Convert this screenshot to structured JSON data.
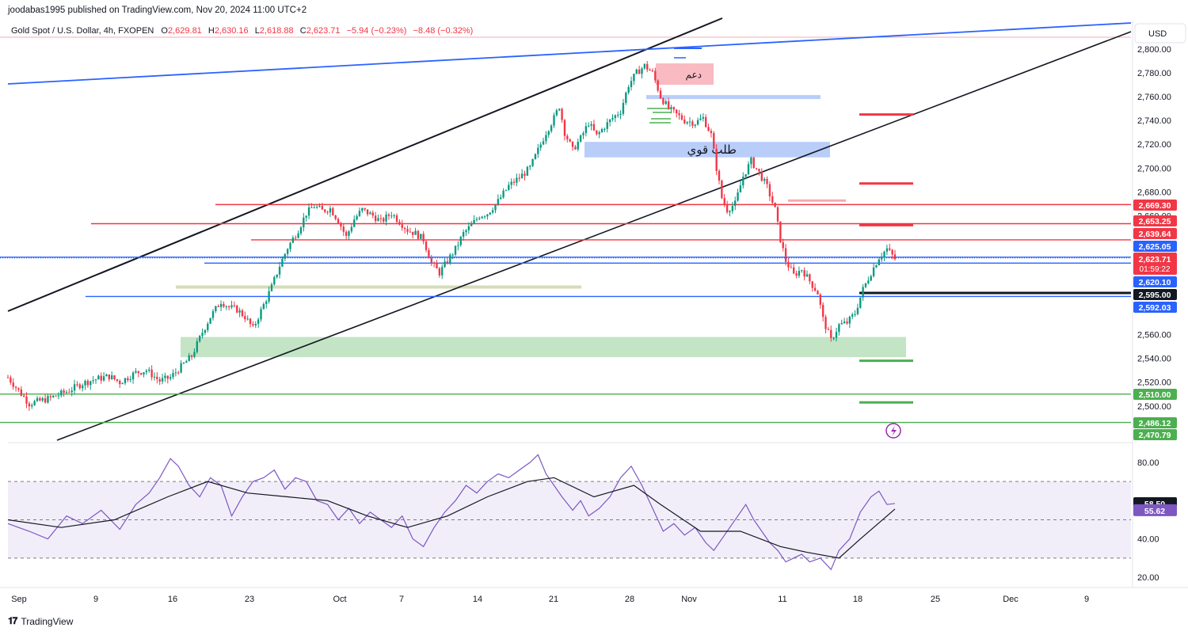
{
  "header": {
    "publisher": "joodabas1995 published on TradingView.com, Nov 20, 2024 11:00 UTC+2"
  },
  "legend": {
    "symbol": "Gold Spot / U.S. Dollar, 4h, FXOPEN",
    "open_label": "O",
    "open": "2,629.81",
    "high_label": "H",
    "high": "2,630.16",
    "low_label": "L",
    "low": "2,618.88",
    "close_label": "C",
    "close": "2,623.71",
    "change": "−5.94 (−0.23%)",
    "change2": "−8.48 (−0.32%)"
  },
  "footer": {
    "brand": "TradingView"
  },
  "currency": "USD",
  "colors": {
    "up": "#089981",
    "down": "#f23645",
    "blue_line": "#2962ff",
    "red_line": "#f23645",
    "green_line": "#4caf50",
    "rsi": "#7e57c2",
    "rsi_band": "#7e57c2"
  },
  "chart_data": {
    "type": "candlestick",
    "instrument": "Gold Spot / U.S. Dollar",
    "timeframe": "4h",
    "ylim": [
      2460,
      2820
    ],
    "x_ticks": [
      "Sep",
      "9",
      "16",
      "23",
      "Oct",
      "7",
      "14",
      "21",
      "28",
      "Nov",
      "11",
      "18",
      "25",
      "Dec",
      "9"
    ],
    "y_ticks": [
      "2,800.00",
      "2,780.00",
      "2,760.00",
      "2,740.00",
      "2,720.00",
      "2,700.00",
      "2,680.00",
      "2,660.00",
      "2,560.00",
      "2,540.00",
      "2,520.00",
      "2,500.00"
    ],
    "y_tick_values": [
      2800,
      2780,
      2760,
      2740,
      2720,
      2700,
      2680,
      2660,
      2560,
      2540,
      2520,
      2500
    ],
    "price_path": [
      [
        0,
        2524
      ],
      [
        8,
        2502
      ],
      [
        15,
        2506
      ],
      [
        22,
        2512
      ],
      [
        28,
        2519
      ],
      [
        32,
        2522
      ],
      [
        38,
        2525
      ],
      [
        42,
        2520
      ],
      [
        48,
        2528
      ],
      [
        52,
        2530
      ],
      [
        57,
        2521
      ],
      [
        61,
        2524
      ],
      [
        65,
        2533
      ],
      [
        69,
        2542
      ],
      [
        73,
        2562
      ],
      [
        76,
        2575
      ],
      [
        80,
        2588
      ],
      [
        83,
        2583
      ],
      [
        86,
        2581
      ],
      [
        89,
        2575
      ],
      [
        92,
        2565
      ],
      [
        96,
        2585
      ],
      [
        99,
        2600
      ],
      [
        102,
        2618
      ],
      [
        105,
        2633
      ],
      [
        109,
        2648
      ],
      [
        112,
        2662
      ],
      [
        115,
        2668
      ],
      [
        118,
        2664
      ],
      [
        121,
        2666
      ],
      [
        124,
        2656
      ],
      [
        127,
        2642
      ],
      [
        130,
        2657
      ],
      [
        133,
        2665
      ],
      [
        137,
        2660
      ],
      [
        140,
        2655
      ],
      [
        144,
        2662
      ],
      [
        147,
        2655
      ],
      [
        150,
        2648
      ],
      [
        153,
        2645
      ],
      [
        156,
        2640
      ],
      [
        159,
        2620
      ],
      [
        162,
        2612
      ],
      [
        165,
        2622
      ],
      [
        168,
        2632
      ],
      [
        171,
        2645
      ],
      [
        174,
        2652
      ],
      [
        177,
        2660
      ],
      [
        180,
        2662
      ],
      [
        184,
        2672
      ],
      [
        188,
        2685
      ],
      [
        192,
        2692
      ],
      [
        196,
        2700
      ],
      [
        199,
        2715
      ],
      [
        202,
        2730
      ],
      [
        205,
        2742
      ],
      [
        207,
        2752
      ],
      [
        209,
        2730
      ],
      [
        212,
        2715
      ],
      [
        215,
        2725
      ],
      [
        218,
        2738
      ],
      [
        221,
        2727
      ],
      [
        224,
        2735
      ],
      [
        227,
        2742
      ],
      [
        230,
        2748
      ],
      [
        233,
        2770
      ],
      [
        236,
        2780
      ],
      [
        239,
        2786
      ],
      [
        242,
        2780
      ],
      [
        245,
        2760
      ],
      [
        248,
        2750
      ],
      [
        251,
        2745
      ],
      [
        254,
        2740
      ],
      [
        258,
        2738
      ],
      [
        261,
        2742
      ],
      [
        264,
        2728
      ],
      [
        266,
        2700
      ],
      [
        268,
        2675
      ],
      [
        270,
        2665
      ],
      [
        273,
        2670
      ],
      [
        276,
        2693
      ],
      [
        279,
        2706
      ],
      [
        282,
        2696
      ],
      [
        285,
        2684
      ],
      [
        288,
        2665
      ],
      [
        290,
        2640
      ],
      [
        292,
        2622
      ],
      [
        295,
        2610
      ],
      [
        298,
        2615
      ],
      [
        301,
        2605
      ],
      [
        304,
        2595
      ],
      [
        306,
        2573
      ],
      [
        309,
        2555
      ],
      [
        312,
        2568
      ],
      [
        315,
        2570
      ],
      [
        318,
        2578
      ],
      [
        321,
        2598
      ],
      [
        324,
        2612
      ],
      [
        327,
        2625
      ],
      [
        330,
        2632
      ],
      [
        333,
        2623.71
      ]
    ],
    "hlines": [
      {
        "price": 2669.3,
        "label": "2,669.30",
        "color": "#f23645"
      },
      {
        "price": 2653.25,
        "label": "2,653.25",
        "color": "#f23645"
      },
      {
        "price": 2639.64,
        "label": "2,639.64",
        "color": "#f23645"
      },
      {
        "price": 2625.05,
        "label": "2,625.05",
        "color": "#2962ff"
      },
      {
        "price": 2620.1,
        "label": "2,620.10",
        "color": "#2962ff"
      },
      {
        "price": 2595.0,
        "label": "2,595.00",
        "color": "#131722"
      },
      {
        "price": 2592.03,
        "label": "2,592.03",
        "color": "#2962ff"
      },
      {
        "price": 2510.0,
        "label": "2,510.00",
        "color": "#4caf50"
      },
      {
        "price": 2486.12,
        "label": "2,486.12",
        "color": "#4caf50"
      },
      {
        "price": 2470.79,
        "label": "2,470.79",
        "color": "#4caf50"
      }
    ],
    "last_price": {
      "price": 2623.71,
      "label": "2,623.71",
      "countdown": "01:59:22"
    },
    "zones": [
      {
        "label": "دعم",
        "p_top": 2788,
        "p_bottom": 2770
      },
      {
        "label": "طلب قوي",
        "p_top": 2722,
        "p_bottom": 2709
      },
      {
        "label": "",
        "p_top": 2558,
        "p_bottom": 2541
      }
    ],
    "rsi": {
      "ylim": [
        15,
        92
      ],
      "y_ticks": [
        "80.00",
        "40.00",
        "20.00"
      ],
      "y_tick_values": [
        80,
        40,
        20
      ],
      "band": [
        30,
        70
      ],
      "value": "58.50",
      "ma_value": "55.62",
      "path": [
        [
          0,
          48
        ],
        [
          8,
          44
        ],
        [
          15,
          40
        ],
        [
          22,
          52
        ],
        [
          28,
          48
        ],
        [
          35,
          55
        ],
        [
          42,
          45
        ],
        [
          48,
          58
        ],
        [
          53,
          64
        ],
        [
          57,
          72
        ],
        [
          61,
          82
        ],
        [
          64,
          78
        ],
        [
          68,
          68
        ],
        [
          72,
          62
        ],
        [
          76,
          72
        ],
        [
          80,
          68
        ],
        [
          84,
          52
        ],
        [
          88,
          62
        ],
        [
          92,
          70
        ],
        [
          96,
          72
        ],
        [
          100,
          76
        ],
        [
          104,
          66
        ],
        [
          108,
          72
        ],
        [
          112,
          70
        ],
        [
          116,
          60
        ],
        [
          120,
          58
        ],
        [
          124,
          50
        ],
        [
          128,
          56
        ],
        [
          132,
          48
        ],
        [
          136,
          54
        ],
        [
          140,
          50
        ],
        [
          144,
          46
        ],
        [
          148,
          52
        ],
        [
          152,
          40
        ],
        [
          156,
          36
        ],
        [
          160,
          46
        ],
        [
          164,
          54
        ],
        [
          168,
          60
        ],
        [
          172,
          68
        ],
        [
          176,
          64
        ],
        [
          180,
          70
        ],
        [
          184,
          74
        ],
        [
          188,
          72
        ],
        [
          192,
          76
        ],
        [
          196,
          80
        ],
        [
          199,
          84
        ],
        [
          202,
          74
        ],
        [
          205,
          68
        ],
        [
          208,
          62
        ],
        [
          212,
          55
        ],
        [
          215,
          60
        ],
        [
          218,
          52
        ],
        [
          222,
          56
        ],
        [
          226,
          62
        ],
        [
          230,
          72
        ],
        [
          234,
          78
        ],
        [
          238,
          68
        ],
        [
          242,
          56
        ],
        [
          246,
          44
        ],
        [
          250,
          48
        ],
        [
          254,
          42
        ],
        [
          258,
          46
        ],
        [
          262,
          38
        ],
        [
          265,
          34
        ],
        [
          268,
          40
        ],
        [
          271,
          46
        ],
        [
          274,
          52
        ],
        [
          277,
          58
        ],
        [
          280,
          50
        ],
        [
          283,
          44
        ],
        [
          286,
          38
        ],
        [
          289,
          34
        ],
        [
          292,
          28
        ],
        [
          295,
          30
        ],
        [
          298,
          32
        ],
        [
          301,
          28
        ],
        [
          305,
          30
        ],
        [
          309,
          24
        ],
        [
          312,
          34
        ],
        [
          316,
          40
        ],
        [
          320,
          54
        ],
        [
          324,
          62
        ],
        [
          327,
          65
        ],
        [
          330,
          58
        ],
        [
          333,
          58.5
        ]
      ],
      "ma_path": [
        [
          0,
          50
        ],
        [
          20,
          46
        ],
        [
          40,
          50
        ],
        [
          60,
          62
        ],
        [
          75,
          70
        ],
        [
          90,
          64
        ],
        [
          105,
          62
        ],
        [
          120,
          60
        ],
        [
          135,
          52
        ],
        [
          150,
          46
        ],
        [
          165,
          52
        ],
        [
          180,
          62
        ],
        [
          195,
          70
        ],
        [
          205,
          72
        ],
        [
          220,
          62
        ],
        [
          235,
          68
        ],
        [
          245,
          58
        ],
        [
          260,
          44
        ],
        [
          275,
          44
        ],
        [
          290,
          36
        ],
        [
          300,
          33
        ],
        [
          312,
          30
        ],
        [
          320,
          40
        ],
        [
          333,
          55.62
        ]
      ]
    }
  }
}
